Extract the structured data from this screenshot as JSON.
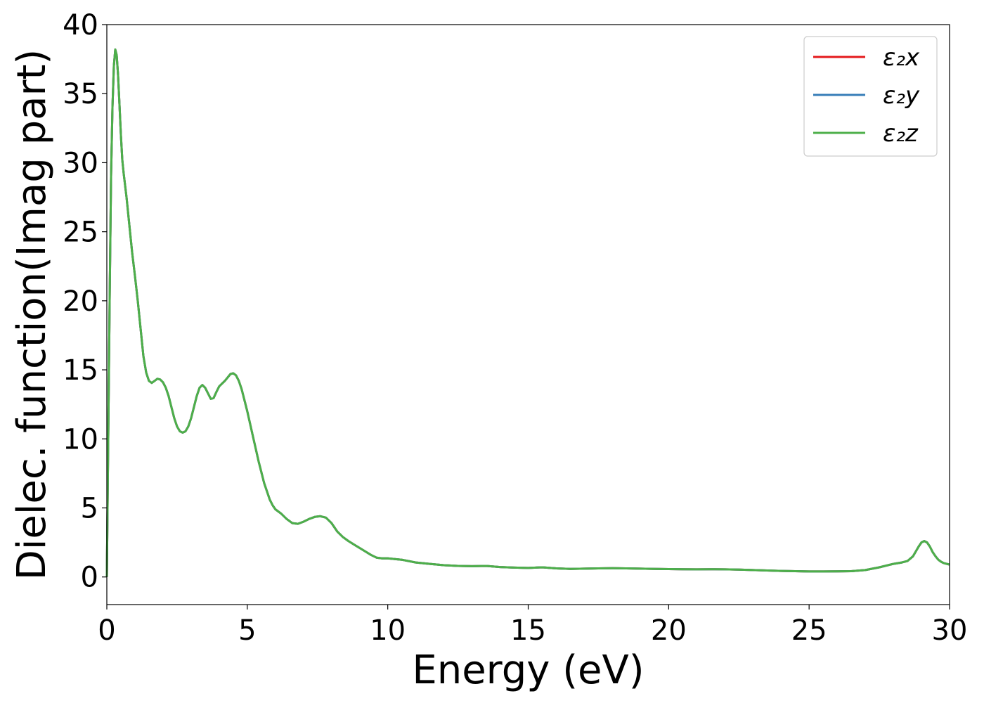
{
  "chart_data": {
    "type": "line",
    "title": "",
    "xlabel": "Energy (eV)",
    "ylabel": "Dielec. function(Imag part)",
    "xlim": [
      0,
      30
    ],
    "ylim": [
      -2,
      40
    ],
    "xticks": [
      0,
      5,
      10,
      15,
      20,
      25,
      30
    ],
    "yticks": [
      0,
      5,
      10,
      15,
      20,
      25,
      30,
      35,
      40
    ],
    "grid": false,
    "legend_position": "top-right",
    "x": [
      0,
      0.05,
      0.1,
      0.15,
      0.2,
      0.25,
      0.3,
      0.35,
      0.4,
      0.45,
      0.5,
      0.55,
      0.6,
      0.7,
      0.8,
      0.9,
      1.0,
      1.1,
      1.2,
      1.3,
      1.4,
      1.5,
      1.6,
      1.7,
      1.8,
      1.9,
      2.0,
      2.1,
      2.2,
      2.3,
      2.4,
      2.5,
      2.6,
      2.7,
      2.8,
      2.9,
      3.0,
      3.1,
      3.2,
      3.3,
      3.4,
      3.5,
      3.6,
      3.7,
      3.8,
      3.9,
      4.0,
      4.1,
      4.2,
      4.3,
      4.4,
      4.5,
      4.6,
      4.7,
      4.8,
      4.9,
      5.0,
      5.1,
      5.2,
      5.3,
      5.4,
      5.5,
      5.6,
      5.7,
      5.8,
      5.9,
      6.0,
      6.2,
      6.4,
      6.6,
      6.8,
      7.0,
      7.2,
      7.4,
      7.6,
      7.8,
      8.0,
      8.2,
      8.4,
      8.6,
      8.8,
      9.0,
      9.2,
      9.4,
      9.6,
      9.8,
      10.0,
      10.5,
      11.0,
      11.5,
      12.0,
      12.5,
      13.0,
      13.5,
      14.0,
      14.5,
      15.0,
      15.5,
      16.0,
      16.5,
      17.0,
      17.5,
      18.0,
      18.5,
      19.0,
      19.5,
      20.0,
      20.5,
      21.0,
      21.5,
      22.0,
      22.5,
      23.0,
      23.5,
      24.0,
      24.5,
      25.0,
      25.5,
      26.0,
      26.5,
      27.0,
      27.5,
      28.0,
      28.3,
      28.5,
      28.7,
      28.9,
      29.0,
      29.1,
      29.2,
      29.3,
      29.4,
      29.5,
      29.6,
      29.7,
      29.8,
      29.9,
      30.0
    ],
    "series": [
      {
        "name": "ε₂x",
        "color": "#e41a1c",
        "values": [
          0,
          10,
          20,
          29,
          34,
          37,
          38.2,
          37.8,
          36.3,
          34.2,
          32,
          30.2,
          29.2,
          27.5,
          25.5,
          23.5,
          21.8,
          20.0,
          18.0,
          16.0,
          14.8,
          14.2,
          14.05,
          14.2,
          14.35,
          14.3,
          14.1,
          13.7,
          13.1,
          12.3,
          11.5,
          10.9,
          10.55,
          10.45,
          10.55,
          10.9,
          11.5,
          12.3,
          13.1,
          13.7,
          13.9,
          13.7,
          13.3,
          12.9,
          12.95,
          13.4,
          13.8,
          14.0,
          14.2,
          14.45,
          14.7,
          14.75,
          14.6,
          14.2,
          13.6,
          12.8,
          12.0,
          11.1,
          10.2,
          9.3,
          8.4,
          7.6,
          6.8,
          6.2,
          5.6,
          5.2,
          4.9,
          4.6,
          4.2,
          3.9,
          3.85,
          4.0,
          4.2,
          4.35,
          4.4,
          4.3,
          3.9,
          3.3,
          2.9,
          2.6,
          2.35,
          2.1,
          1.85,
          1.6,
          1.4,
          1.35,
          1.35,
          1.25,
          1.05,
          0.95,
          0.85,
          0.8,
          0.78,
          0.8,
          0.72,
          0.68,
          0.65,
          0.7,
          0.62,
          0.58,
          0.6,
          0.62,
          0.63,
          0.62,
          0.6,
          0.58,
          0.57,
          0.56,
          0.55,
          0.56,
          0.55,
          0.53,
          0.5,
          0.47,
          0.44,
          0.42,
          0.4,
          0.4,
          0.41,
          0.42,
          0.5,
          0.7,
          0.95,
          1.05,
          1.15,
          1.5,
          2.2,
          2.5,
          2.6,
          2.5,
          2.2,
          1.8,
          1.5,
          1.25,
          1.1,
          1.0,
          0.95,
          0.9
        ]
      },
      {
        "name": "ε₂y",
        "color": "#377eb8",
        "values": [
          0,
          10,
          20,
          29,
          34,
          37,
          38.2,
          37.8,
          36.3,
          34.2,
          32,
          30.2,
          29.2,
          27.5,
          25.5,
          23.5,
          21.8,
          20.0,
          18.0,
          16.0,
          14.8,
          14.2,
          14.05,
          14.2,
          14.35,
          14.3,
          14.1,
          13.7,
          13.1,
          12.3,
          11.5,
          10.9,
          10.55,
          10.45,
          10.55,
          10.9,
          11.5,
          12.3,
          13.1,
          13.7,
          13.9,
          13.7,
          13.3,
          12.9,
          12.95,
          13.4,
          13.8,
          14.0,
          14.2,
          14.45,
          14.7,
          14.75,
          14.6,
          14.2,
          13.6,
          12.8,
          12.0,
          11.1,
          10.2,
          9.3,
          8.4,
          7.6,
          6.8,
          6.2,
          5.6,
          5.2,
          4.9,
          4.6,
          4.2,
          3.9,
          3.85,
          4.0,
          4.2,
          4.35,
          4.4,
          4.3,
          3.9,
          3.3,
          2.9,
          2.6,
          2.35,
          2.1,
          1.85,
          1.6,
          1.4,
          1.35,
          1.35,
          1.25,
          1.05,
          0.95,
          0.85,
          0.8,
          0.78,
          0.8,
          0.72,
          0.68,
          0.65,
          0.7,
          0.62,
          0.58,
          0.6,
          0.62,
          0.63,
          0.62,
          0.6,
          0.58,
          0.57,
          0.56,
          0.55,
          0.56,
          0.55,
          0.53,
          0.5,
          0.47,
          0.44,
          0.42,
          0.4,
          0.4,
          0.41,
          0.42,
          0.5,
          0.7,
          0.95,
          1.05,
          1.15,
          1.5,
          2.2,
          2.5,
          2.6,
          2.5,
          2.2,
          1.8,
          1.5,
          1.25,
          1.1,
          1.0,
          0.95,
          0.9
        ]
      },
      {
        "name": "ε₂z",
        "color": "#4daf4a",
        "values": [
          0,
          10,
          20,
          29,
          34,
          37,
          38.2,
          37.8,
          36.3,
          34.2,
          32,
          30.2,
          29.2,
          27.5,
          25.5,
          23.5,
          21.8,
          20.0,
          18.0,
          16.0,
          14.8,
          14.2,
          14.05,
          14.2,
          14.35,
          14.3,
          14.1,
          13.7,
          13.1,
          12.3,
          11.5,
          10.9,
          10.55,
          10.45,
          10.55,
          10.9,
          11.5,
          12.3,
          13.1,
          13.7,
          13.9,
          13.7,
          13.3,
          12.9,
          12.95,
          13.4,
          13.8,
          14.0,
          14.2,
          14.45,
          14.7,
          14.75,
          14.6,
          14.2,
          13.6,
          12.8,
          12.0,
          11.1,
          10.2,
          9.3,
          8.4,
          7.6,
          6.8,
          6.2,
          5.6,
          5.2,
          4.9,
          4.6,
          4.2,
          3.9,
          3.85,
          4.0,
          4.2,
          4.35,
          4.4,
          4.3,
          3.9,
          3.3,
          2.9,
          2.6,
          2.35,
          2.1,
          1.85,
          1.6,
          1.4,
          1.35,
          1.35,
          1.25,
          1.05,
          0.95,
          0.85,
          0.8,
          0.78,
          0.8,
          0.72,
          0.68,
          0.65,
          0.7,
          0.62,
          0.58,
          0.6,
          0.62,
          0.63,
          0.62,
          0.6,
          0.58,
          0.57,
          0.56,
          0.55,
          0.56,
          0.55,
          0.53,
          0.5,
          0.47,
          0.44,
          0.42,
          0.4,
          0.4,
          0.41,
          0.42,
          0.5,
          0.7,
          0.95,
          1.05,
          1.15,
          1.5,
          2.2,
          2.5,
          2.6,
          2.5,
          2.2,
          1.8,
          1.5,
          1.25,
          1.1,
          1.0,
          0.95,
          0.9
        ]
      }
    ]
  }
}
